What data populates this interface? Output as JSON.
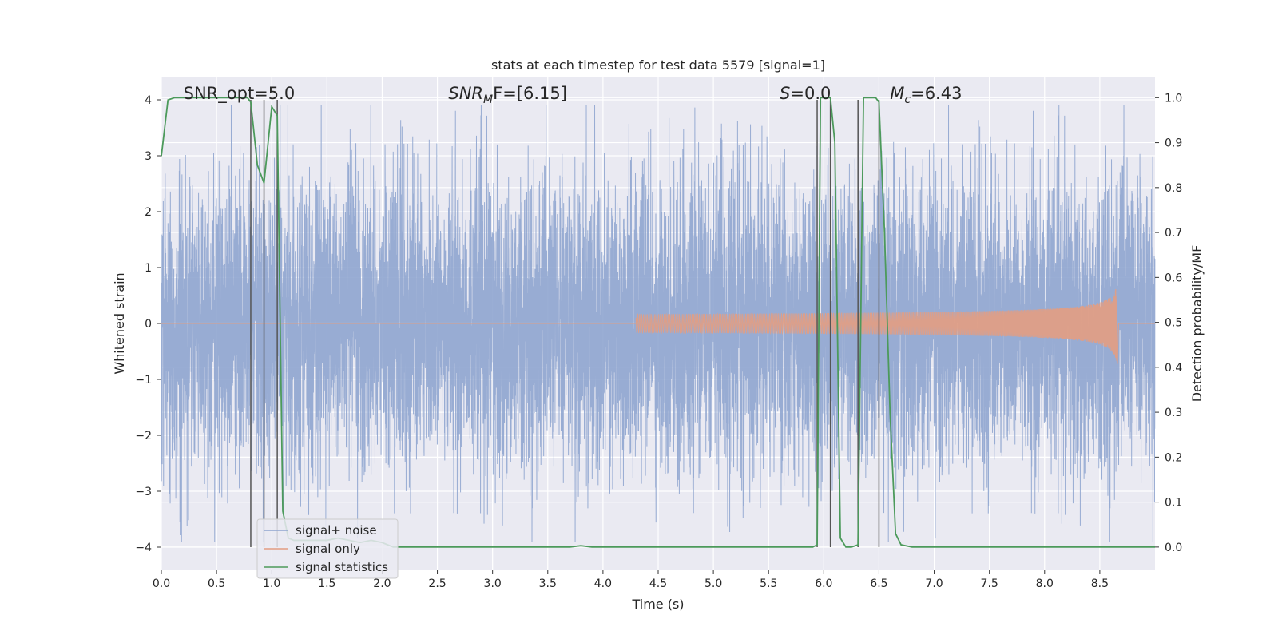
{
  "chart_data": {
    "type": "line",
    "title": "stats at each timestep for test data 5579 [signal=1]",
    "xlabel": "Time (s)",
    "ylabel_left": "Whitened strain",
    "ylabel_right": "Detection probability/MF",
    "xlim": [
      0,
      9.0
    ],
    "ylim_left": [
      -4.4,
      4.4
    ],
    "ylim_right": [
      -0.05,
      1.045
    ],
    "x_ticks": [
      0.0,
      0.5,
      1.0,
      1.5,
      2.0,
      2.5,
      3.0,
      3.5,
      4.0,
      4.5,
      5.0,
      5.5,
      6.0,
      6.5,
      7.0,
      7.5,
      8.0,
      8.5
    ],
    "x_tick_labels": [
      "0.0",
      "0.5",
      "1.0",
      "1.5",
      "2.0",
      "2.5",
      "3.0",
      "3.5",
      "4.0",
      "4.5",
      "5.0",
      "5.5",
      "6.0",
      "6.5",
      "7.0",
      "7.5",
      "8.0",
      "8.5"
    ],
    "y_left_ticks": [
      -4,
      -3,
      -2,
      -1,
      0,
      1,
      2,
      3,
      4
    ],
    "y_left_tick_labels": [
      "−4",
      "−3",
      "−2",
      "−1",
      "0",
      "1",
      "2",
      "3",
      "4"
    ],
    "y_right_ticks": [
      0.0,
      0.1,
      0.2,
      0.3,
      0.4,
      0.5,
      0.6,
      0.7,
      0.8,
      0.9,
      1.0
    ],
    "y_right_tick_labels": [
      "0.0",
      "0.1",
      "0.2",
      "0.3",
      "0.4",
      "0.5",
      "0.6",
      "0.7",
      "0.8",
      "0.9",
      "1.0"
    ],
    "grid": true,
    "legend_position": "lower-left",
    "annotations": [
      {
        "text": "SNR_opt=5.0",
        "x": 0.2
      },
      {
        "text": "SNR_MF=[6.15]",
        "x": 2.6
      },
      {
        "text": "S=0.0",
        "x": 5.6
      },
      {
        "text": "M_c=6.43",
        "x": 6.6
      }
    ],
    "vlines_x": [
      0.81,
      0.93,
      1.05,
      5.94,
      6.06,
      6.31,
      6.5
    ],
    "noise": {
      "name": "signal+ noise",
      "color": "#8fa5cf",
      "sample_rate_hz": 1000,
      "duration_s": 9.0,
      "typical_envelope": 1.6,
      "max_abs": 3.9
    },
    "signal_only": {
      "name": "signal only",
      "color": "#e39d82",
      "start_s": 4.3,
      "peak_s": 8.66,
      "peak_amplitude": 0.75
    },
    "series": [
      {
        "name": "signal statistics",
        "axis": "right",
        "color": "#4c9a5b",
        "x": [
          0.0,
          0.06,
          0.12,
          0.2,
          0.3,
          0.4,
          0.5,
          0.6,
          0.7,
          0.78,
          0.81,
          0.87,
          0.93,
          1.0,
          1.05,
          1.1,
          1.15,
          1.2,
          1.3,
          1.4,
          1.5,
          1.6,
          1.7,
          1.8,
          1.9,
          2.0,
          2.1,
          2.5,
          3.0,
          3.5,
          3.7,
          3.8,
          3.9,
          4.0,
          4.5,
          5.0,
          5.5,
          5.9,
          5.94,
          5.97,
          6.0,
          6.06,
          6.1,
          6.15,
          6.2,
          6.25,
          6.31,
          6.36,
          6.42,
          6.47,
          6.5,
          6.55,
          6.6,
          6.65,
          6.7,
          6.8,
          7.0,
          7.5,
          8.0,
          8.5,
          9.0
        ],
        "y": [
          0.87,
          0.995,
          1.0,
          1.0,
          1.0,
          1.0,
          1.0,
          1.0,
          1.0,
          1.0,
          0.99,
          0.85,
          0.81,
          0.98,
          0.96,
          0.08,
          0.02,
          0.015,
          0.015,
          0.015,
          0.015,
          0.02,
          0.015,
          0.01,
          0.015,
          0.01,
          0.0,
          0.0,
          0.0,
          0.0,
          0.0,
          0.003,
          0.0,
          0.0,
          0.0,
          0.0,
          0.0,
          0.0,
          0.005,
          1.0,
          1.0,
          1.0,
          0.9,
          0.02,
          0.0,
          0.0,
          0.005,
          1.0,
          1.0,
          1.0,
          0.99,
          0.7,
          0.3,
          0.03,
          0.005,
          0.0,
          0.0,
          0.0,
          0.0,
          0.0,
          0.0
        ]
      }
    ]
  }
}
